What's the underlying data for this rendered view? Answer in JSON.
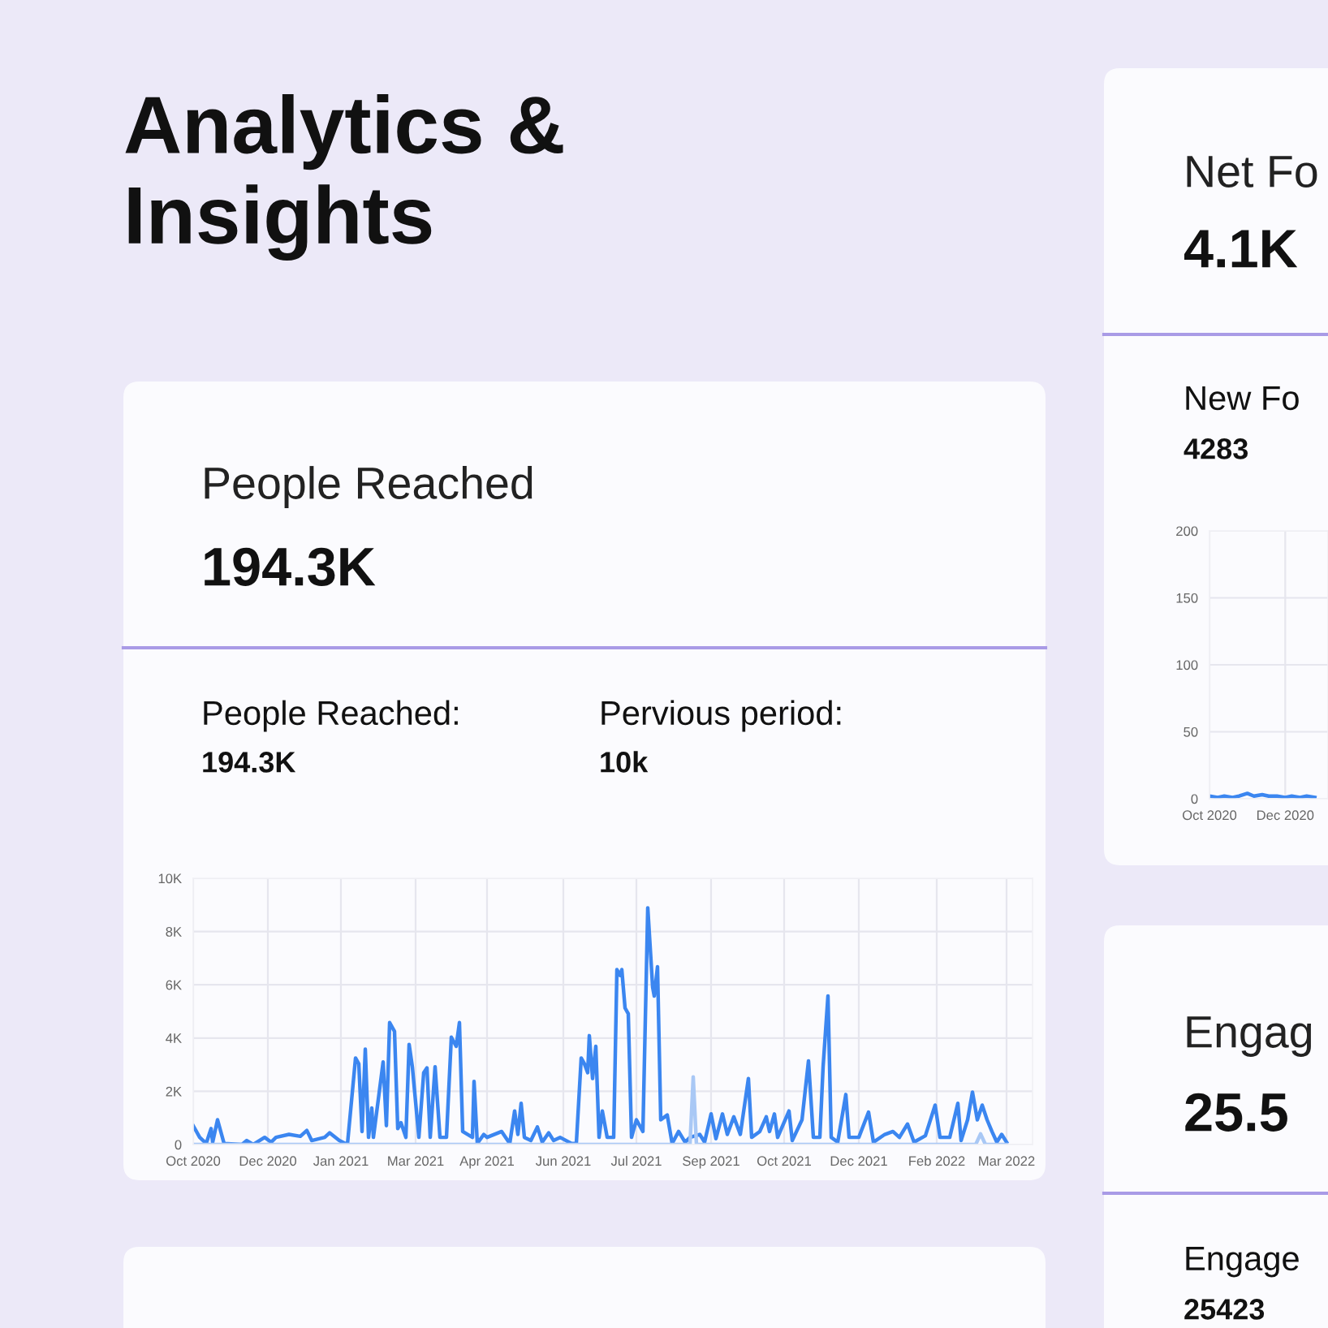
{
  "chart_data": [
    {
      "type": "other",
      "title": "Analytics & Insights"
    },
    {
      "type": "line",
      "title": "People Reached",
      "subtitle": "194.3K",
      "annotations": [
        "People Reached:",
        "194.3K",
        "Pervious period:",
        "10k"
      ],
      "x": [
        "2020-10-31",
        "2020-11-04",
        "2020-11-08",
        "2020-11-11",
        "2020-11-12",
        "2020-11-15",
        "2020-11-19",
        "2020-11-30",
        "2020-12-03",
        "2020-12-07",
        "2020-12-14",
        "2020-12-18",
        "2020-12-21",
        "2020-12-29",
        "2021-01-05",
        "2021-01-09",
        "2021-01-12",
        "2021-01-20",
        "2021-01-23",
        "2021-01-29",
        "2021-02-03",
        "2021-02-08",
        "2021-02-10",
        "2021-02-12",
        "2021-02-14",
        "2021-02-16",
        "2021-02-18",
        "2021-02-19",
        "2021-02-25",
        "2021-02-27",
        "2021-03-01",
        "2021-03-04",
        "2021-03-06",
        "2021-03-08",
        "2021-03-11",
        "2021-03-13",
        "2021-03-15",
        "2021-03-19",
        "2021-03-22",
        "2021-03-24",
        "2021-03-26",
        "2021-03-29",
        "2021-04-01",
        "2021-04-05",
        "2021-04-08",
        "2021-04-11",
        "2021-04-13",
        "2021-04-15",
        "2021-04-21",
        "2021-04-22",
        "2021-04-24",
        "2021-04-28",
        "2021-04-30",
        "2021-05-09",
        "2021-05-14",
        "2021-05-17",
        "2021-05-19",
        "2021-05-21",
        "2021-05-23",
        "2021-05-27",
        "2021-05-31",
        "2021-06-03",
        "2021-06-07",
        "2021-06-10",
        "2021-06-14",
        "2021-06-21",
        "2021-06-24",
        "2021-06-27",
        "2021-06-29",
        "2021-07-01",
        "2021-07-02",
        "2021-07-04",
        "2021-07-06",
        "2021-07-08",
        "2021-07-10",
        "2021-07-13",
        "2021-07-17",
        "2021-07-19",
        "2021-07-21",
        "2021-07-22",
        "2021-07-24",
        "2021-07-26",
        "2021-07-28",
        "2021-07-31",
        "2021-08-04",
        "2021-08-07",
        "2021-08-10",
        "2021-08-11",
        "2021-08-13",
        "2021-08-15",
        "2021-08-19",
        "2021-08-22",
        "2021-08-26",
        "2021-08-30",
        "2021-09-02",
        "2021-09-08",
        "2021-09-11",
        "2021-09-15",
        "2021-09-18",
        "2021-09-22",
        "2021-09-25",
        "2021-09-29",
        "2021-10-03",
        "2021-10-08",
        "2021-10-10",
        "2021-10-15",
        "2021-10-19",
        "2021-10-21",
        "2021-10-24",
        "2021-10-26",
        "2021-11-02",
        "2021-11-04",
        "2021-11-10",
        "2021-11-14",
        "2021-11-17",
        "2021-11-21",
        "2021-11-23",
        "2021-11-26",
        "2021-11-28",
        "2021-12-02",
        "2021-12-07",
        "2021-12-09",
        "2021-12-15",
        "2021-12-21",
        "2021-12-24",
        "2021-12-31",
        "2022-01-05",
        "2022-01-09",
        "2022-01-14",
        "2022-01-18",
        "2022-01-25",
        "2022-01-31",
        "2022-02-03",
        "2022-02-09",
        "2022-02-14",
        "2022-02-16",
        "2022-02-20",
        "2022-02-23",
        "2022-02-26",
        "2022-03-01",
        "2022-03-04",
        "2022-03-07",
        "2022-03-10",
        "2022-03-13",
        "2022-03-16"
      ],
      "series": [
        {
          "color": "#3b86f0",
          "values": [
            0.71,
            0.27,
            0.04,
            0.6,
            0.09,
            0.93,
            0.04,
            0,
            0.15,
            0,
            0.27,
            0.09,
            0.27,
            0.38,
            0.31,
            0.53,
            0.15,
            0.27,
            0.44,
            0.15,
            0,
            3.25,
            3.03,
            0.49,
            3.58,
            0.27,
            1.37,
            0.27,
            3.1,
            0.71,
            4.58,
            4.25,
            0.6,
            0.82,
            0.27,
            3.76,
            2.92,
            0.27,
            2.7,
            2.88,
            0.27,
            2.92,
            0.27,
            0.27,
            4.03,
            3.69,
            4.58,
            0.49,
            0.27,
            2.37,
            0.04,
            0.38,
            0.27,
            0.49,
            0.04,
            1.26,
            0.38,
            1.55,
            0.27,
            0.15,
            0.66,
            0.09,
            0.44,
            0.15,
            0.27,
            0.04,
            0.04,
            3.25,
            3.03,
            2.7,
            4.09,
            2.48,
            3.69,
            0.27,
            1.26,
            0.27,
            0.27,
            6.57,
            6.35,
            6.57,
            5.13,
            4.91,
            0.27,
            0.93,
            0.49,
            8.89,
            5.91,
            5.58,
            6.68,
            0.93,
            1.11,
            0.04,
            0.49,
            0.09,
            0.27,
            0.38,
            0.09,
            1.15,
            0.22,
            1.15,
            0.38,
            1.04,
            0.38,
            2.48,
            0.27,
            0.49,
            1.04,
            0.49,
            1.15,
            0.27,
            1.26,
            0.15,
            0.93,
            3.14,
            0.27,
            0.27,
            2.92,
            5.58,
            0.27,
            0.09,
            1.88,
            0.27,
            0.27,
            1.22,
            0.09,
            0.38,
            0.49,
            0.27,
            0.77,
            0.09,
            0.33,
            1.48,
            0.27,
            0.27,
            1.55,
            0.15,
            0.93,
            1.97,
            0.93,
            1.48,
            0.93,
            0.49,
            0.09,
            0.38,
            0.09
          ]
        },
        {
          "color": "#a9c8f5",
          "x": [
            "2020-10-31",
            "2021-09-02",
            "2021-09-04",
            "2021-09-06",
            "2022-02-25",
            "2022-02-28",
            "2022-03-03",
            "2022-03-16"
          ],
          "values": [
            0,
            0,
            2.54,
            0,
            0,
            0.4,
            0,
            0
          ]
        }
      ],
      "xlim": [
        "2020-10-31",
        "2022-04-01"
      ],
      "ylim": [
        0,
        10
      ],
      "xticks": [
        {
          "value": "2020-10-31",
          "label": "Oct 2020"
        },
        {
          "value": "2020-12-16",
          "label": "Dec 2020"
        },
        {
          "value": "2021-01-30",
          "label": "Jan 2021"
        },
        {
          "value": "2021-03-17",
          "label": "Mar 2021"
        },
        {
          "value": "2021-04-30",
          "label": "Apr 2021"
        },
        {
          "value": "2021-06-16",
          "label": "Jun 2021"
        },
        {
          "value": "2021-07-31",
          "label": "Jul 2021"
        },
        {
          "value": "2021-09-15",
          "label": "Sep 2021"
        },
        {
          "value": "2021-10-30",
          "label": "Oct 2021"
        },
        {
          "value": "2021-12-15",
          "label": "Dec 2021"
        },
        {
          "value": "2022-02-01",
          "label": "Feb 2022"
        },
        {
          "value": "2022-03-16",
          "label": "Mar 2022"
        }
      ],
      "yticks": [
        0,
        {
          "value": 2,
          "label": "2K"
        },
        {
          "value": 4,
          "label": "4K"
        },
        {
          "value": 6,
          "label": "6K"
        },
        {
          "value": 8,
          "label": "8K"
        },
        {
          "value": 10,
          "label": "10K"
        }
      ],
      "grid": true
    },
    {
      "type": "line",
      "title": "Net Fo",
      "subtitle": "4.1K",
      "annotations": [
        "New Fo",
        "4283"
      ],
      "x": [
        "2020-10-31",
        "2020-11-05",
        "2020-11-09",
        "2020-11-14",
        "2020-11-18",
        "2020-11-23",
        "2020-11-27",
        "2020-12-02",
        "2020-12-06",
        "2020-12-11",
        "2020-12-16",
        "2020-12-20",
        "2020-12-25",
        "2020-12-29",
        "2021-01-03"
      ],
      "series": [
        {
          "color": "#3b86f0",
          "values": [
            2,
            1,
            2,
            1,
            2,
            4,
            2,
            3,
            2,
            2,
            1,
            2,
            1,
            2,
            1
          ]
        }
      ],
      "xlim": [
        "2020-10-31",
        "2021-01-11"
      ],
      "ylim": [
        0,
        200
      ],
      "xticks": [
        {
          "value": "2020-10-31",
          "label": "Oct 2020"
        },
        {
          "value": "2020-12-16",
          "label": "Dec 2020"
        }
      ],
      "yticks": [
        0,
        50,
        100,
        150,
        200
      ],
      "grid": true
    },
    {
      "type": "other",
      "title": "Engag",
      "subtitle": "25.5",
      "annotations": [
        "Engage",
        "25423"
      ]
    }
  ]
}
